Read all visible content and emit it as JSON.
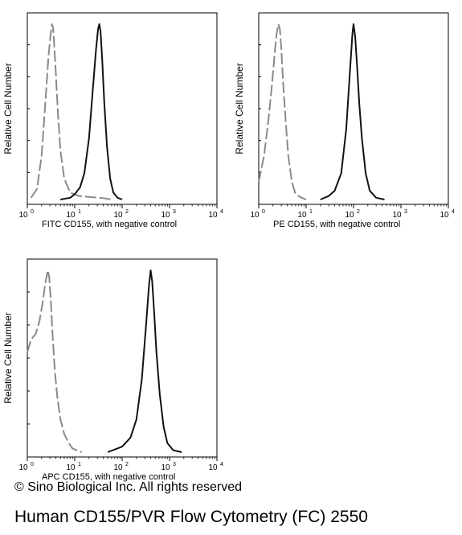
{
  "chart_data": [
    {
      "type": "line",
      "xlabel": "FITC  CD155,  with negative control",
      "ylabel": "Relative Cell Number",
      "x_scale": "log",
      "xlim": [
        1,
        10000
      ],
      "x_ticks": [
        "10",
        "10",
        "10",
        "10",
        "10"
      ],
      "x_tick_exponents": [
        "0",
        "1",
        "2",
        "3",
        "4"
      ],
      "grid": false,
      "series": [
        {
          "color": "#8a8a8a",
          "line_style": "dashed",
          "x": [
            1.2,
            1.6,
            2.0,
            2.4,
            2.8,
            3.1,
            3.3,
            3.5,
            3.7,
            4.0,
            4.4,
            5.0,
            6.0,
            8.0,
            12,
            20,
            40,
            60
          ],
          "y": [
            0.01,
            0.06,
            0.25,
            0.55,
            0.82,
            0.94,
            1.0,
            0.98,
            0.88,
            0.72,
            0.5,
            0.28,
            0.12,
            0.04,
            0.02,
            0.015,
            0.008,
            0.0
          ]
        },
        {
          "color": "#111111",
          "line_style": "solid",
          "x": [
            5,
            8,
            10,
            13,
            16,
            20,
            24,
            28,
            31,
            33,
            35,
            38,
            42,
            48,
            56,
            65,
            80,
            100
          ],
          "y": [
            0.0,
            0.01,
            0.03,
            0.07,
            0.15,
            0.35,
            0.62,
            0.85,
            0.97,
            1.0,
            0.96,
            0.8,
            0.55,
            0.3,
            0.12,
            0.04,
            0.01,
            0.0
          ]
        }
      ]
    },
    {
      "type": "line",
      "xlabel": "PE  CD155,  with negative control",
      "ylabel": "Relative Cell Number",
      "x_scale": "log",
      "xlim": [
        1,
        10000
      ],
      "x_ticks": [
        "10",
        "10",
        "10",
        "10",
        "10"
      ],
      "x_tick_exponents": [
        "0",
        "1",
        "2",
        "3",
        "4"
      ],
      "grid": false,
      "series": [
        {
          "color": "#8a8a8a",
          "line_style": "dashed",
          "x": [
            1.0,
            1.3,
            1.6,
            1.9,
            2.2,
            2.4,
            2.6,
            2.8,
            3.0,
            3.3,
            3.7,
            4.2,
            5.0,
            6.0,
            8.0,
            10
          ],
          "y": [
            0.1,
            0.25,
            0.45,
            0.65,
            0.85,
            0.95,
            1.0,
            0.97,
            0.85,
            0.65,
            0.45,
            0.25,
            0.1,
            0.03,
            0.01,
            0.0
          ]
        },
        {
          "color": "#111111",
          "line_style": "solid",
          "x": [
            20,
            30,
            40,
            55,
            70,
            85,
            95,
            100,
            108,
            118,
            132,
            150,
            180,
            220,
            300,
            450
          ],
          "y": [
            0.0,
            0.02,
            0.05,
            0.15,
            0.4,
            0.75,
            0.95,
            1.0,
            0.93,
            0.78,
            0.55,
            0.35,
            0.15,
            0.05,
            0.01,
            0.0
          ]
        }
      ]
    },
    {
      "type": "line",
      "xlabel": "APC CD155, with negative control",
      "ylabel": "Relative Cell Number",
      "x_scale": "log",
      "xlim": [
        1,
        10000
      ],
      "x_ticks": [
        "10",
        "10",
        "10",
        "10",
        "10"
      ],
      "x_tick_exponents": [
        "0",
        "1",
        "2",
        "3",
        "4"
      ],
      "grid": false,
      "series": [
        {
          "color": "#8a8a8a",
          "line_style": "dashed",
          "x": [
            1.0,
            1.2,
            1.5,
            1.8,
            2.1,
            2.4,
            2.7,
            2.9,
            3.1,
            3.4,
            3.8,
            4.3,
            5.0,
            6.0,
            7.5,
            9.0,
            11,
            14
          ],
          "y": [
            0.55,
            0.62,
            0.65,
            0.72,
            0.82,
            0.93,
            1.0,
            0.96,
            0.85,
            0.65,
            0.45,
            0.3,
            0.18,
            0.1,
            0.05,
            0.02,
            0.01,
            0.0
          ]
        },
        {
          "color": "#111111",
          "line_style": "solid",
          "x": [
            50,
            100,
            150,
            200,
            260,
            320,
            370,
            400,
            430,
            470,
            530,
            620,
            750,
            900,
            1200,
            1800
          ],
          "y": [
            0.0,
            0.03,
            0.08,
            0.18,
            0.4,
            0.7,
            0.92,
            1.0,
            0.94,
            0.78,
            0.55,
            0.32,
            0.14,
            0.05,
            0.01,
            0.0
          ]
        }
      ]
    }
  ],
  "footer": {
    "copyright": "© Sino Biological Inc. All rights reserved",
    "caption": "Human CD155/PVR Flow Cytometry (FC) 2550"
  }
}
